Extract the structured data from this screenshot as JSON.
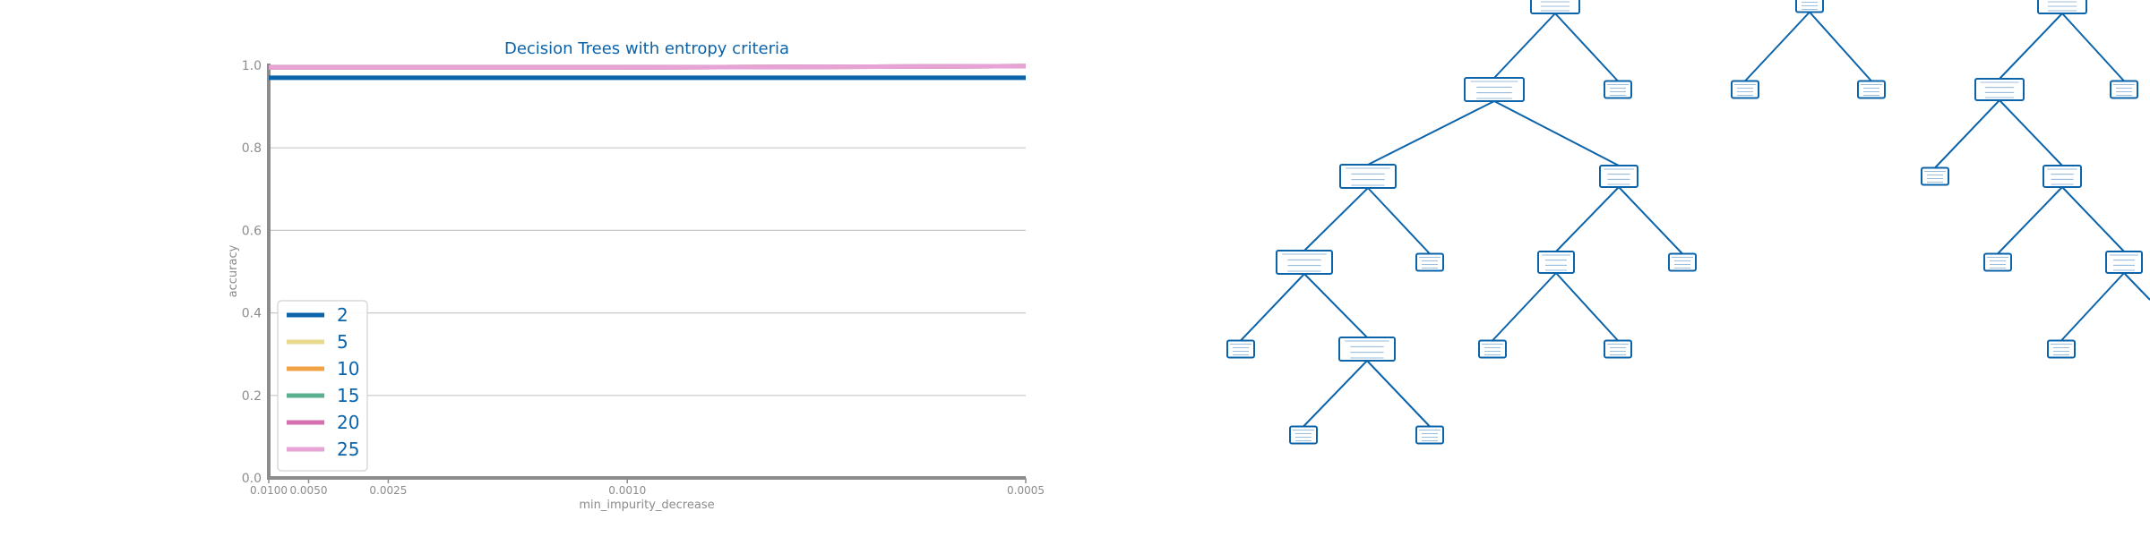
{
  "chart_data": [
    {
      "type": "line",
      "title": "Decision Trees with entropy criteria",
      "xlabel": "min_impurity_decrease",
      "ylabel": "accuracy",
      "x": [
        0.01,
        0.005,
        0.0025,
        0.001,
        0.0005
      ],
      "x_tick_labels": [
        "0.0100",
        "0.0050",
        "0.0025",
        "0.0010",
        "0.0005"
      ],
      "x_scale": "reciprocal",
      "ylim": [
        0.0,
        1.0
      ],
      "y_ticks": [
        0.0,
        0.2,
        0.4,
        0.6,
        0.8,
        1.0
      ],
      "y_tick_labels": [
        "0.0",
        "0.2",
        "0.4",
        "0.6",
        "0.8",
        "1.0"
      ],
      "grid": "horizontal",
      "legend_position": "lower-left",
      "series": [
        {
          "name": "2",
          "color": "#0b63aa",
          "values": [
            0.97,
            0.97,
            0.97,
            0.97,
            0.97
          ]
        },
        {
          "name": "5",
          "color": "#e8d98c",
          "values": [
            0.995,
            0.995,
            0.995,
            0.995,
            0.998
          ]
        },
        {
          "name": "10",
          "color": "#f0a245",
          "values": [
            0.995,
            0.995,
            0.995,
            0.995,
            0.998
          ]
        },
        {
          "name": "15",
          "color": "#5aaf8e",
          "values": [
            0.995,
            0.995,
            0.995,
            0.995,
            0.998
          ]
        },
        {
          "name": "20",
          "color": "#d76fae",
          "values": [
            0.995,
            0.995,
            0.995,
            0.995,
            0.998
          ]
        },
        {
          "name": "25",
          "color": "#e7a3d6",
          "values": [
            0.995,
            0.995,
            0.995,
            0.995,
            0.998
          ]
        }
      ]
    },
    {
      "type": "diagram",
      "description_visible": "decision tree plot",
      "node_count": 30
    }
  ]
}
